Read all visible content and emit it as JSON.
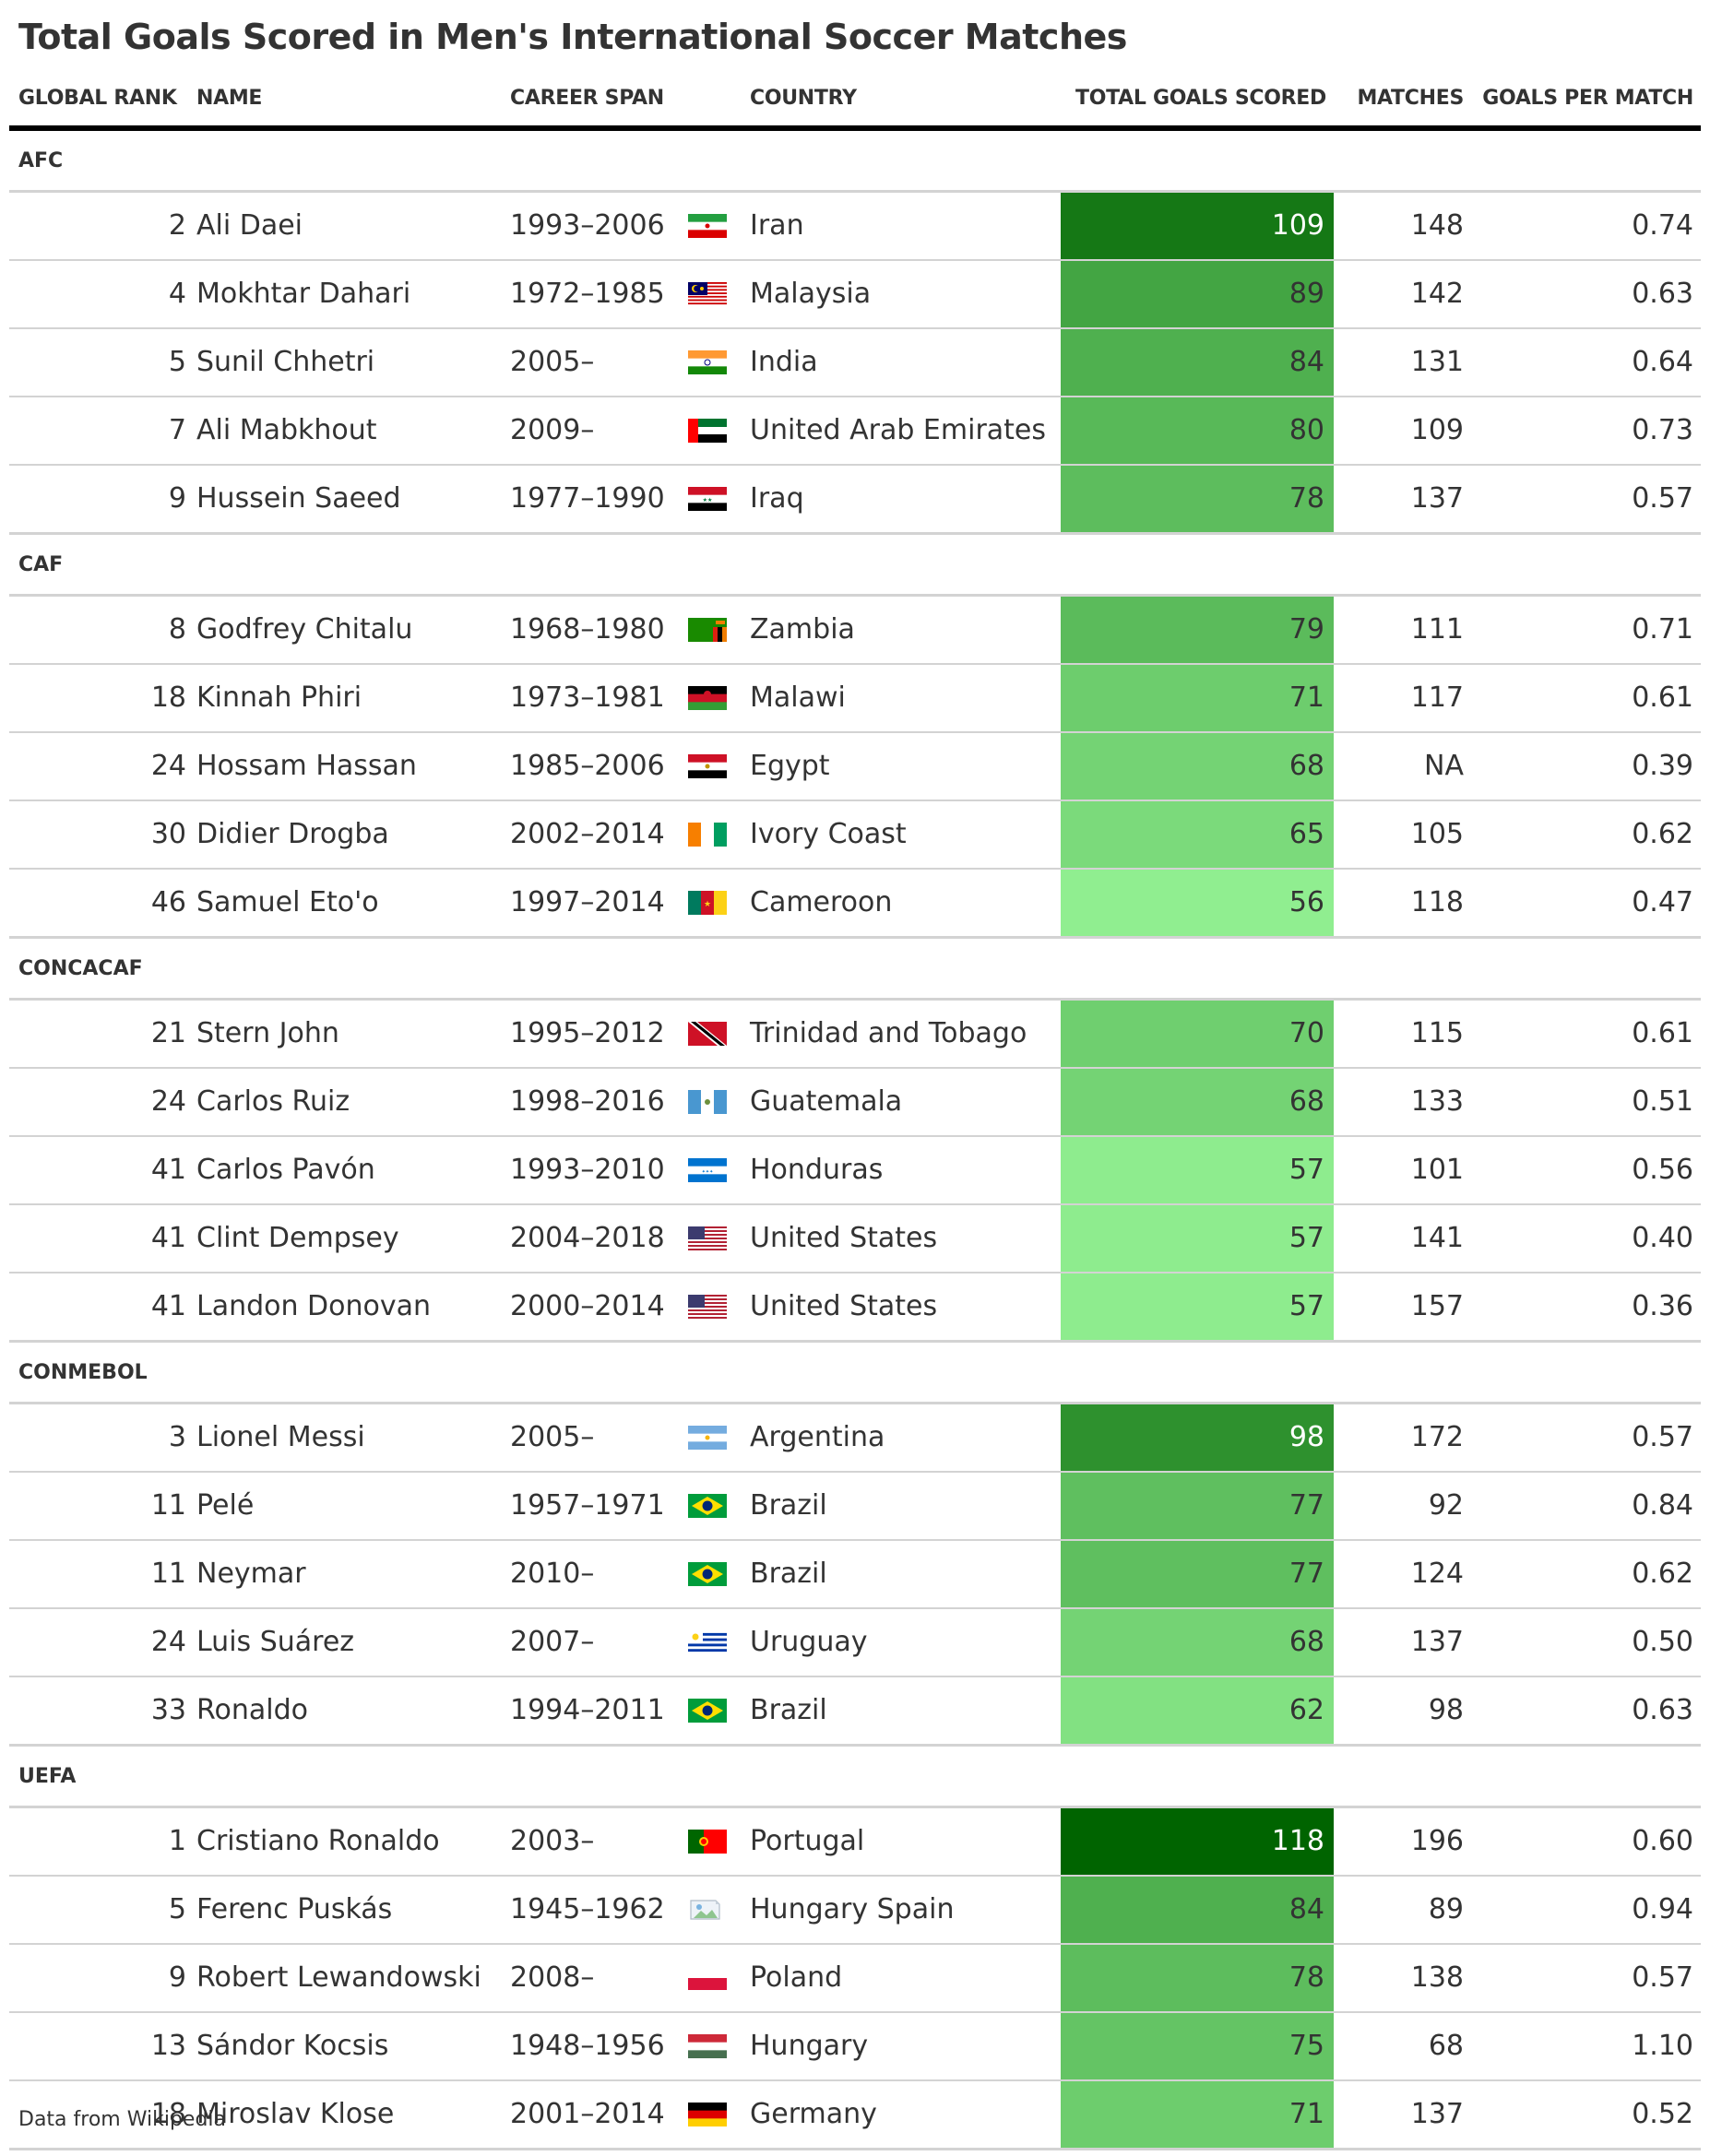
{
  "title": "Total Goals Scored in Men's International Soccer Matches",
  "columns": [
    "GLOBAL RANK",
    "NAME",
    "CAREER SPAN",
    "COUNTRY",
    "TOTAL GOALS SCORED",
    "MATCHES",
    "GOALS PER MATCH"
  ],
  "footnote": "Data from Wikipedia",
  "colors": {
    "scale_low": "#90ee90",
    "scale_high": "#006400",
    "text_dark": "#333333",
    "text_light": "#ffffff"
  },
  "chart_data": {
    "type": "table",
    "color_scale": {
      "column": "TOTAL GOALS SCORED",
      "domain": [
        56,
        118
      ],
      "range": [
        "#90ee90",
        "#006400"
      ]
    },
    "groups": [
      {
        "label": "AFC",
        "rows": [
          {
            "rank": "2",
            "name": "Ali Daei",
            "span": "1993–2006",
            "flag": "flag-iran",
            "country": "Iran",
            "goals": 109,
            "matches": "148",
            "gpm": "0.74"
          },
          {
            "rank": "4",
            "name": "Mokhtar Dahari",
            "span": "1972–1985",
            "flag": "flag-malaysia",
            "country": "Malaysia",
            "goals": 89,
            "matches": "142",
            "gpm": "0.63"
          },
          {
            "rank": "5",
            "name": "Sunil Chhetri",
            "span": "2005–",
            "flag": "flag-india",
            "country": "India",
            "goals": 84,
            "matches": "131",
            "gpm": "0.64"
          },
          {
            "rank": "7",
            "name": "Ali Mabkhout",
            "span": "2009–",
            "flag": "flag-uae",
            "country": "United Arab Emirates",
            "goals": 80,
            "matches": "109",
            "gpm": "0.73"
          },
          {
            "rank": "9",
            "name": "Hussein Saeed",
            "span": "1977–1990",
            "flag": "flag-iraq",
            "country": "Iraq",
            "goals": 78,
            "matches": "137",
            "gpm": "0.57"
          }
        ]
      },
      {
        "label": "CAF",
        "rows": [
          {
            "rank": "8",
            "name": "Godfrey Chitalu",
            "span": "1968–1980",
            "flag": "flag-zambia",
            "country": "Zambia",
            "goals": 79,
            "matches": "111",
            "gpm": "0.71"
          },
          {
            "rank": "18",
            "name": "Kinnah Phiri",
            "span": "1973–1981",
            "flag": "flag-malawi",
            "country": "Malawi",
            "goals": 71,
            "matches": "117",
            "gpm": "0.61"
          },
          {
            "rank": "24",
            "name": "Hossam Hassan",
            "span": "1985–2006",
            "flag": "flag-egypt",
            "country": "Egypt",
            "goals": 68,
            "matches": "NA",
            "gpm": "0.39"
          },
          {
            "rank": "30",
            "name": "Didier Drogba",
            "span": "2002–2014",
            "flag": "flag-ivory-coast",
            "country": "Ivory Coast",
            "goals": 65,
            "matches": "105",
            "gpm": "0.62"
          },
          {
            "rank": "46",
            "name": "Samuel Eto'o",
            "span": "1997–2014",
            "flag": "flag-cameroon",
            "country": "Cameroon",
            "goals": 56,
            "matches": "118",
            "gpm": "0.47"
          }
        ]
      },
      {
        "label": "CONCACAF",
        "rows": [
          {
            "rank": "21",
            "name": "Stern John",
            "span": "1995–2012",
            "flag": "flag-trinidad",
            "country": "Trinidad and Tobago",
            "goals": 70,
            "matches": "115",
            "gpm": "0.61"
          },
          {
            "rank": "24",
            "name": "Carlos Ruiz",
            "span": "1998–2016",
            "flag": "flag-guatemala",
            "country": "Guatemala",
            "goals": 68,
            "matches": "133",
            "gpm": "0.51"
          },
          {
            "rank": "41",
            "name": "Carlos Pavón",
            "span": "1993–2010",
            "flag": "flag-honduras",
            "country": "Honduras",
            "goals": 57,
            "matches": "101",
            "gpm": "0.56"
          },
          {
            "rank": "41",
            "name": "Clint Dempsey",
            "span": "2004–2018",
            "flag": "flag-usa",
            "country": "United States",
            "goals": 57,
            "matches": "141",
            "gpm": "0.40"
          },
          {
            "rank": "41",
            "name": "Landon Donovan",
            "span": "2000–2014",
            "flag": "flag-usa",
            "country": "United States",
            "goals": 57,
            "matches": "157",
            "gpm": "0.36"
          }
        ]
      },
      {
        "label": "CONMEBOL",
        "rows": [
          {
            "rank": "3",
            "name": "Lionel Messi",
            "span": "2005–",
            "flag": "flag-argentina",
            "country": "Argentina",
            "goals": 98,
            "matches": "172",
            "gpm": "0.57"
          },
          {
            "rank": "11",
            "name": "Pelé",
            "span": "1957–1971",
            "flag": "flag-brazil",
            "country": "Brazil",
            "goals": 77,
            "matches": "92",
            "gpm": "0.84"
          },
          {
            "rank": "11",
            "name": "Neymar",
            "span": "2010–",
            "flag": "flag-brazil",
            "country": "Brazil",
            "goals": 77,
            "matches": "124",
            "gpm": "0.62"
          },
          {
            "rank": "24",
            "name": "Luis Suárez",
            "span": "2007–",
            "flag": "flag-uruguay",
            "country": "Uruguay",
            "goals": 68,
            "matches": "137",
            "gpm": "0.50"
          },
          {
            "rank": "33",
            "name": "Ronaldo",
            "span": "1994–2011",
            "flag": "flag-brazil",
            "country": "Brazil",
            "goals": 62,
            "matches": "98",
            "gpm": "0.63"
          }
        ]
      },
      {
        "label": "UEFA",
        "rows": [
          {
            "rank": "1",
            "name": "Cristiano Ronaldo",
            "span": "2003–",
            "flag": "flag-portugal",
            "country": "Portugal",
            "goals": 118,
            "matches": "196",
            "gpm": "0.60"
          },
          {
            "rank": "5",
            "name": "Ferenc Puskás",
            "span": "1945–1962",
            "flag": "broken-image-icon",
            "country": "Hungary Spain",
            "goals": 84,
            "matches": "89",
            "gpm": "0.94"
          },
          {
            "rank": "9",
            "name": "Robert Lewandowski",
            "span": "2008–",
            "flag": "flag-poland",
            "country": "Poland",
            "goals": 78,
            "matches": "138",
            "gpm": "0.57"
          },
          {
            "rank": "13",
            "name": "Sándor Kocsis",
            "span": "1948–1956",
            "flag": "flag-hungary",
            "country": "Hungary",
            "goals": 75,
            "matches": "68",
            "gpm": "1.10"
          },
          {
            "rank": "18",
            "name": "Miroslav Klose",
            "span": "2001–2014",
            "flag": "flag-germany",
            "country": "Germany",
            "goals": 71,
            "matches": "137",
            "gpm": "0.52"
          }
        ]
      }
    ]
  }
}
